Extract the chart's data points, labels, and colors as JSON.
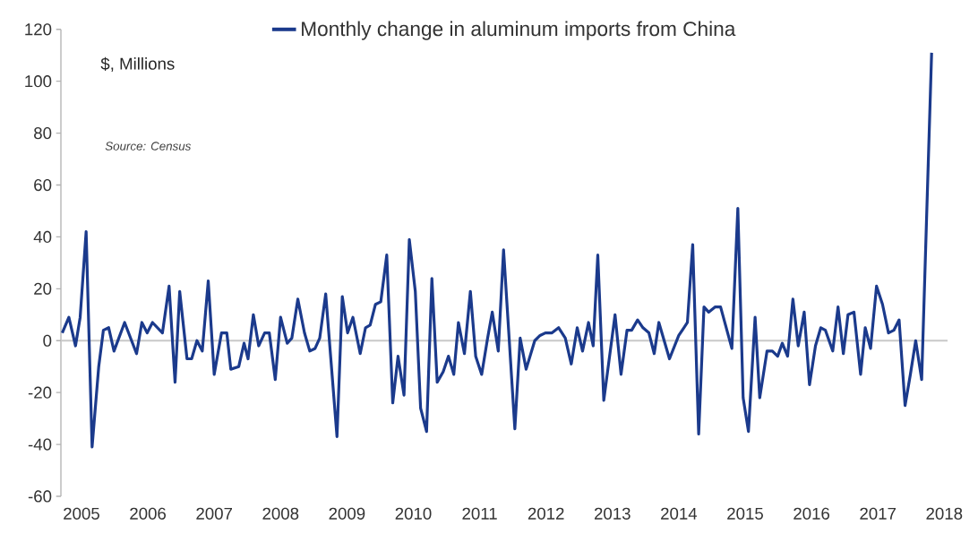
{
  "chart_data": {
    "type": "line",
    "ylabel": "$, Millions",
    "annotations": [
      "Source: Census"
    ],
    "x": [
      2004.71,
      2004.81,
      2004.91,
      2004.98,
      2005.07,
      2005.16,
      2005.26,
      2005.33,
      2005.41,
      2005.49,
      2005.65,
      2005.83,
      2005.91,
      2005.99,
      2006.07,
      2006.22,
      2006.32,
      2006.41,
      2006.48,
      2006.59,
      2006.66,
      2006.74,
      2006.82,
      2006.91,
      2007.0,
      2007.11,
      2007.19,
      2007.25,
      2007.37,
      2007.45,
      2007.51,
      2007.59,
      2007.67,
      2007.76,
      2007.83,
      2007.92,
      2008.0,
      2008.1,
      2008.17,
      2008.26,
      2008.36,
      2008.44,
      2008.52,
      2008.59,
      2008.68,
      2008.85,
      2008.93,
      2009.01,
      2009.09,
      2009.2,
      2009.28,
      2009.35,
      2009.43,
      2009.51,
      2009.6,
      2009.69,
      2009.77,
      2009.86,
      2009.94,
      2010.03,
      2010.11,
      2010.2,
      2010.28,
      2010.36,
      2010.45,
      2010.53,
      2010.61,
      2010.68,
      2010.77,
      2010.86,
      2010.94,
      2011.03,
      2011.12,
      2011.19,
      2011.28,
      2011.36,
      2011.53,
      2011.61,
      2011.7,
      2011.83,
      2011.91,
      2011.99,
      2012.09,
      2012.19,
      2012.29,
      2012.38,
      2012.47,
      2012.55,
      2012.64,
      2012.71,
      2012.78,
      2012.87,
      2013.04,
      2013.13,
      2013.22,
      2013.29,
      2013.38,
      2013.46,
      2013.55,
      2013.63,
      2013.7,
      2013.86,
      2014.0,
      2014.13,
      2014.21,
      2014.3,
      2014.38,
      2014.45,
      2014.55,
      2014.63,
      2014.8,
      2014.89,
      2014.97,
      2015.05,
      2015.15,
      2015.22,
      2015.33,
      2015.41,
      2015.49,
      2015.56,
      2015.64,
      2015.72,
      2015.8,
      2015.89,
      2015.97,
      2016.06,
      2016.14,
      2016.21,
      2016.32,
      2016.4,
      2016.48,
      2016.55,
      2016.64,
      2016.74,
      2016.81,
      2016.89,
      2016.98,
      2017.07,
      2017.16,
      2017.24,
      2017.32,
      2017.41,
      2017.49,
      2017.57,
      2017.66,
      2017.81
    ],
    "series": [
      {
        "name": "Monthly change in aluminum imports from China",
        "color": "#1b3a8c",
        "values": [
          3,
          9,
          -2,
          9,
          42,
          -41,
          -10,
          4,
          5,
          -4,
          7,
          -5,
          7,
          3,
          7,
          3,
          21,
          -16,
          19,
          -7,
          -7,
          0,
          -4,
          23,
          -13,
          3,
          3,
          -11,
          -10,
          -1,
          -7,
          10,
          -2,
          3,
          3,
          -15,
          9,
          -1,
          1,
          16,
          3,
          -4,
          -3,
          1,
          18,
          -37,
          17,
          3,
          9,
          -5,
          5,
          6,
          14,
          15,
          33,
          -24,
          -6,
          -21,
          39,
          19,
          -26,
          -35,
          24,
          -16,
          -12,
          -6,
          -13,
          7,
          -5,
          19,
          -6,
          -13,
          1,
          11,
          -4,
          35,
          -34,
          1,
          -11,
          0,
          2,
          3,
          3,
          5,
          1,
          -9,
          5,
          -4,
          7,
          -2,
          33,
          -23,
          10,
          -13,
          4,
          4,
          8,
          5,
          3,
          -5,
          7,
          -7,
          2,
          7,
          37,
          -36,
          13,
          11,
          13,
          13,
          -3,
          51,
          -22,
          -35,
          9,
          -22,
          -4,
          -4,
          -6,
          -1,
          -6,
          16,
          -2,
          11,
          -17,
          -2,
          5,
          4,
          -4,
          13,
          -5,
          10,
          11,
          -13,
          5,
          -3,
          21,
          14,
          3,
          4,
          8,
          -25,
          -13,
          0,
          -15,
          111
        ]
      }
    ],
    "xlim": [
      2004.69,
      2018.05
    ],
    "xticks": [
      2005,
      2006,
      2007,
      2008,
      2009,
      2010,
      2011,
      2012,
      2013,
      2014,
      2015,
      2016,
      2017,
      2018
    ],
    "ylim": [
      -60,
      120
    ],
    "yticks": [
      -60,
      -40,
      -20,
      0,
      20,
      40,
      60,
      80,
      100,
      120
    ],
    "ref_lines": [
      {
        "axis": "y",
        "value": 0,
        "color": "#c8c8c8"
      }
    ],
    "legend": "top"
  }
}
